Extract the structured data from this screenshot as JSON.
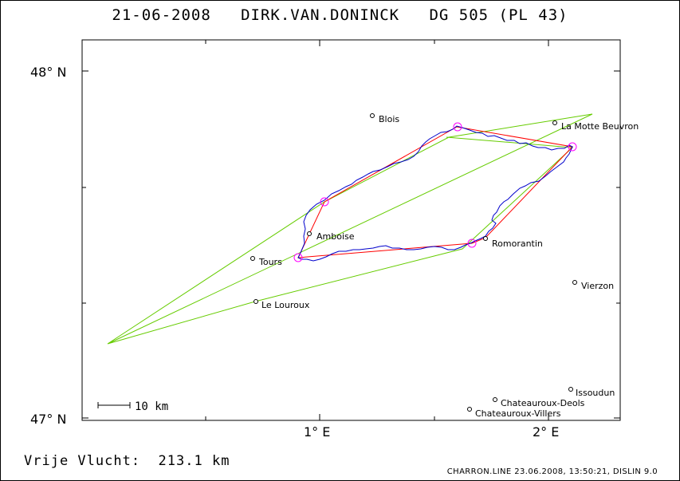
{
  "title": "21-06-2008   DIRK.VAN.DONINCK   DG 505 (PL 43)",
  "summary": {
    "label": "Vrije Vlucht:",
    "value": "213.1 km"
  },
  "footer": "CHARRON.LINE 23.06.2008, 13:50:21, DISLIN 9.0",
  "axes": {
    "lat_labels": [
      "48° N",
      "47° N"
    ],
    "lon_labels": [
      "1° E",
      "2° E"
    ]
  },
  "scale_bar": "10 km",
  "colors": {
    "track": "#0000cc",
    "flight_line": "#ff0000",
    "task_line": "#66cc00",
    "turnpoint": "#ff00ff",
    "frame": "#000000"
  },
  "places": [
    {
      "name": "Blois"
    },
    {
      "name": "La Motte Beuvron"
    },
    {
      "name": "Amboise"
    },
    {
      "name": "Tours"
    },
    {
      "name": "Romorantin"
    },
    {
      "name": "Le Louroux"
    },
    {
      "name": "Vierzon"
    },
    {
      "name": "Issoudun"
    },
    {
      "name": "Chateauroux-Deols"
    },
    {
      "name": "Chateauroux-Villers"
    }
  ]
}
